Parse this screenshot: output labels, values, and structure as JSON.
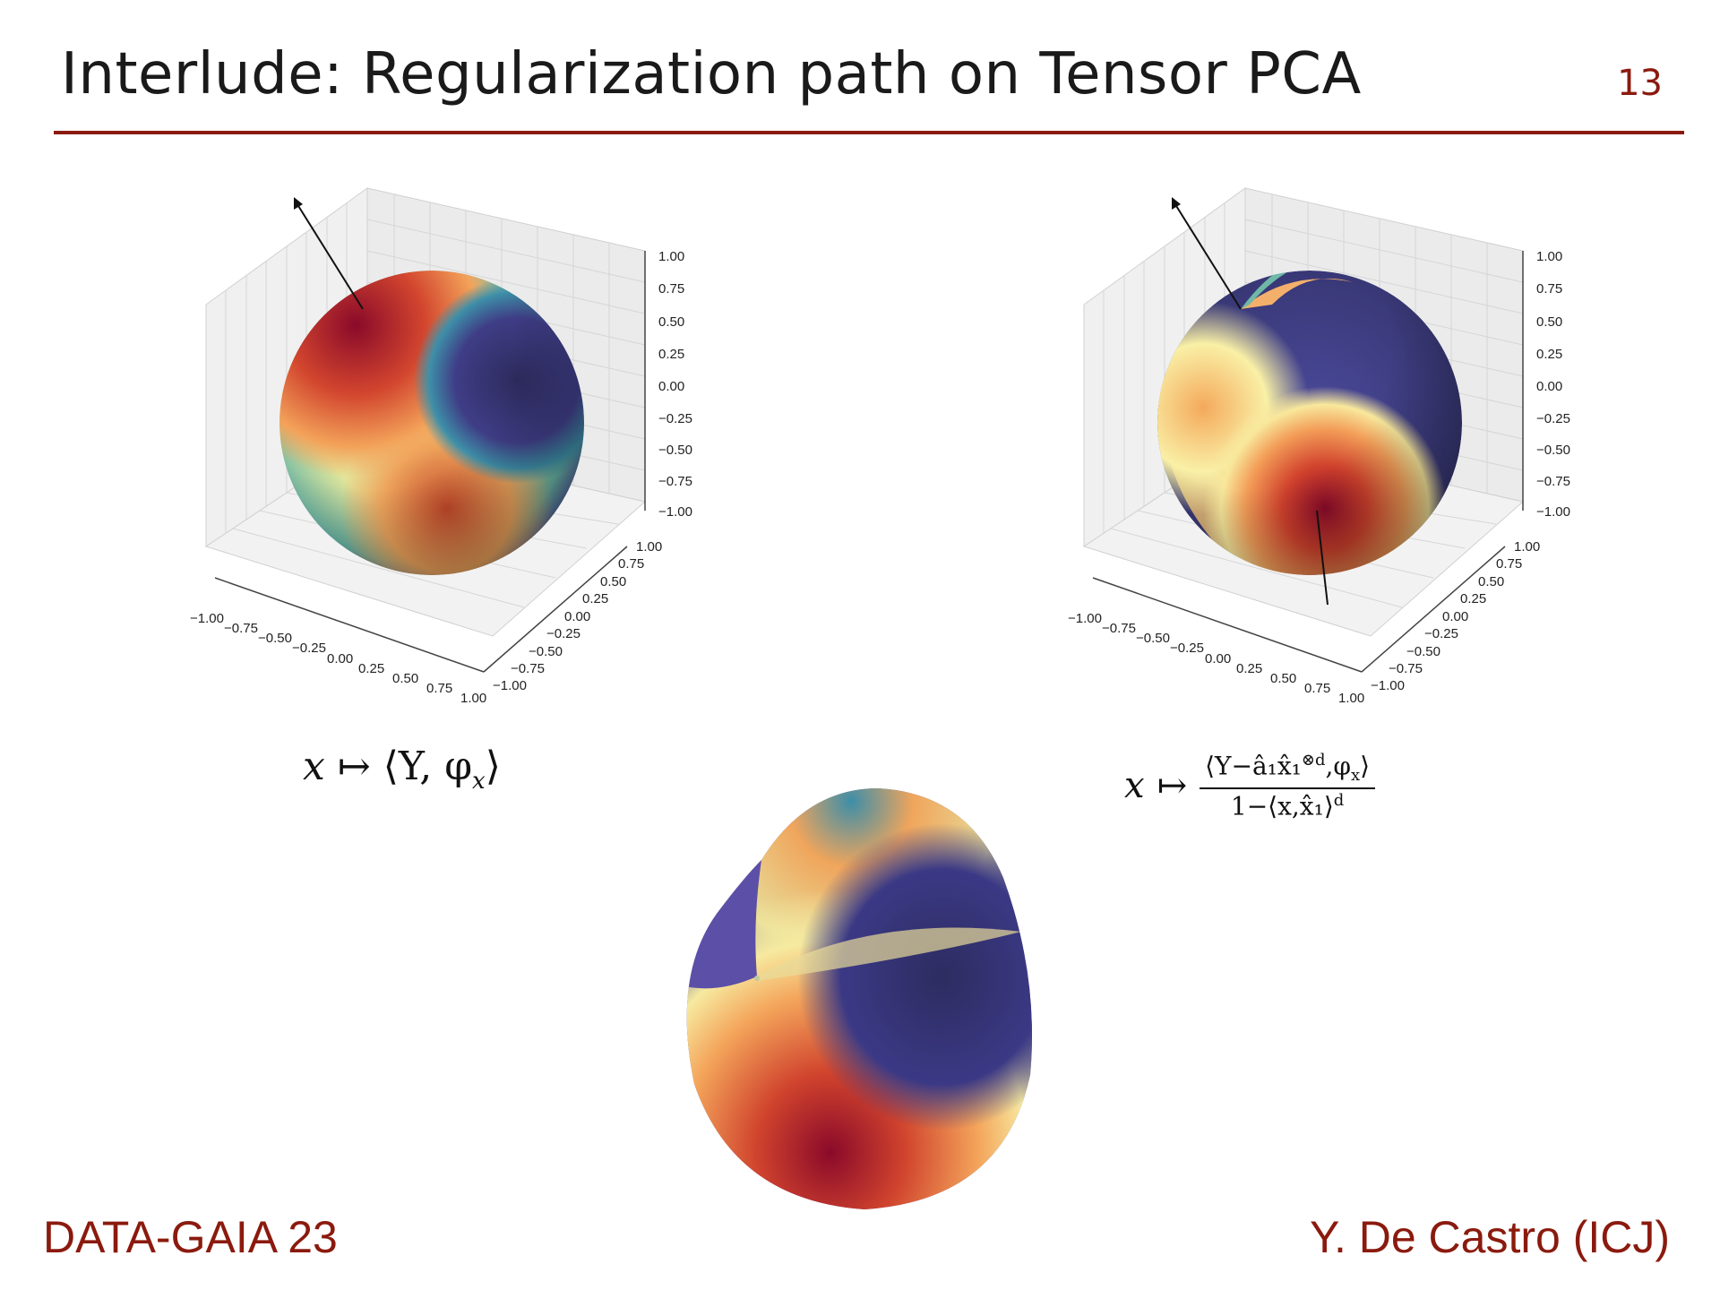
{
  "slide": {
    "title": "Interlude: Regularization path on Tensor PCA",
    "page_number": "13",
    "footer_left": "DATA-GAIA 23",
    "footer_right": "Y. De Castro (ICJ)",
    "accent_color": "#8b1a0e"
  },
  "axes": {
    "ticks": [
      "1.00",
      "0.75",
      "0.50",
      "0.25",
      "0.00",
      "−0.25",
      "−0.50",
      "−0.75",
      "−1.00"
    ],
    "ticks_x": [
      "−1.00",
      "−0.75",
      "−0.50",
      "−0.25",
      "0.00",
      "0.25",
      "0.50",
      "0.75",
      "1.00"
    ]
  },
  "formulas": {
    "left": {
      "x": "x",
      "maps": "↦",
      "body": "⟨Y, φ",
      "sub": "x",
      "close": "⟩"
    },
    "right": {
      "x": "x",
      "maps": "↦",
      "numerator": "⟨Y−â₁x̂₁",
      "num_sup": "⊗d",
      "num_tail": ",φ",
      "num_sub": "x",
      "num_close": "⟩",
      "denominator": "1−⟨x,x̂₁⟩",
      "den_sup": "d"
    }
  }
}
